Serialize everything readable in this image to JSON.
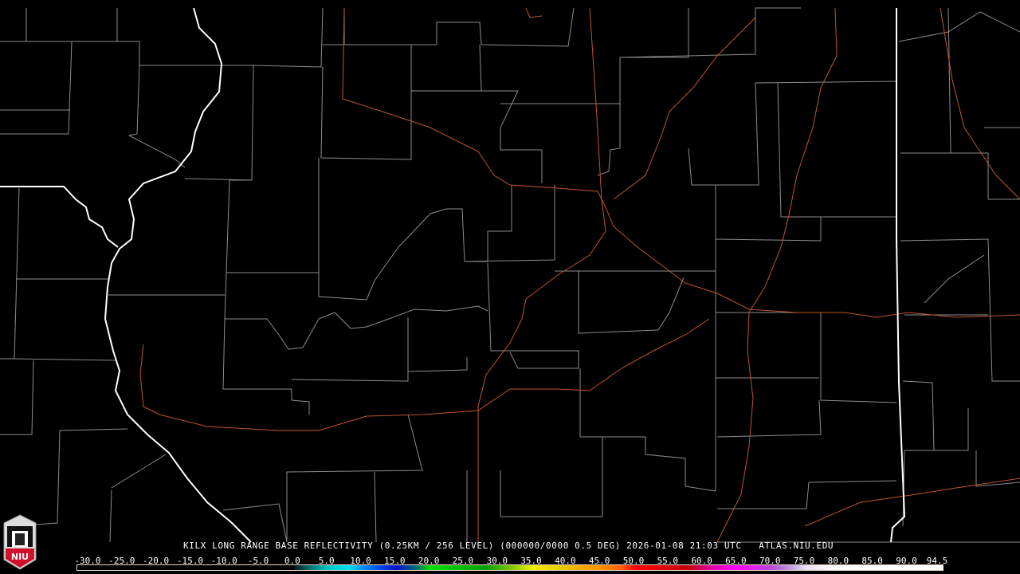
{
  "product_title": "KILX LONG RANGE BASE REFLECTIVITY (0.25KM / 256 LEVEL) (000000/0000 0.5 DEG) 2026-01-08 21:03 UTC   ATLAS.NIU.EDU",
  "logo_text": "NIU",
  "colorbar": {
    "unit_values": [
      "-30.0",
      "-25.0",
      "-20.0",
      "-15.0",
      "-10.0",
      "-5.0",
      "0.0",
      "5.0",
      "10.0",
      "15.0",
      "20.0",
      "25.0",
      "30.0",
      "35.0",
      "40.0",
      "45.0",
      "50.0",
      "55.0",
      "60.0",
      "65.0",
      "70.0",
      "75.0",
      "80.0",
      "85.0",
      "90.0",
      "94.5"
    ],
    "colors": {
      "0": "#001818",
      "2": "#006868",
      "5": "#00c8c8",
      "8": "#00e0f0",
      "10": "#0090f0",
      "13": "#0040e8",
      "15": "#0010d0",
      "18": "#007070",
      "20": "#00e000",
      "28": "#00a000",
      "32": "#80c800",
      "35": "#f0f000",
      "40": "#e8c000",
      "45": "#ff9000",
      "48": "#ff6000",
      "50": "#ff0000",
      "58": "#c00010",
      "61": "#e000a0",
      "65": "#ff00ff",
      "70": "#b848d8",
      "73": "#c0a0e0",
      "75": "#e8e0f0",
      "80": "#ffffff"
    }
  },
  "map": {
    "state_border_color": "#ffffff",
    "county_color": "#8c8c8c",
    "highway_color": "#c0542a"
  }
}
